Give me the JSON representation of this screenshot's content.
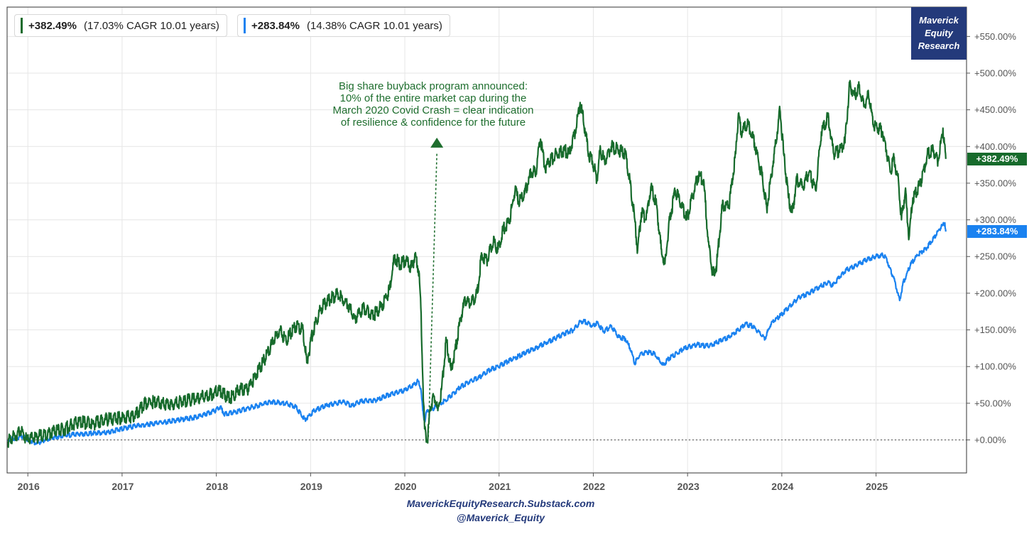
{
  "legend": [
    {
      "value": "+382.49%",
      "detail": "(17.03% CAGR 10.01 years)",
      "color": "#176b2c"
    },
    {
      "value": "+283.84%",
      "detail": "(14.38% CAGR 10.01 years)",
      "color": "#1a82f0"
    }
  ],
  "brand": {
    "line1": "Maverick",
    "line2": "Equity",
    "line3": "Research",
    "bg": "#243a7b"
  },
  "annotation": {
    "lines": [
      "Big share buyback program announced:",
      "10% of the entire market cap during the",
      "March 2020 Covid Crash = clear indication",
      "of resilience & confidence for the future"
    ],
    "color": "#1e6e2e",
    "arrow_x_year": 2020.35
  },
  "footer": {
    "site": "MaverickEquityResearch.Substack.com",
    "handle": "@Maverick_Equity"
  },
  "end_tags": {
    "green": "+382.49%",
    "blue": "+283.84%"
  },
  "chart_data": {
    "type": "line",
    "title": "",
    "xlabel": "",
    "ylabel": "",
    "xlim": [
      2015.79,
      2025.97
    ],
    "ylim": [
      -45,
      590
    ],
    "x_ticks": [
      "2016",
      "2017",
      "2018",
      "2019",
      "2020",
      "2021",
      "2022",
      "2023",
      "2024",
      "2025"
    ],
    "y_ticks": [
      {
        "value": 550,
        "label": "+550.00%"
      },
      {
        "value": 500,
        "label": "+500.00%"
      },
      {
        "value": 450,
        "label": "+450.00%"
      },
      {
        "value": 400,
        "label": "+400.00%"
      },
      {
        "value": 350,
        "label": "+350.00%"
      },
      {
        "value": 300,
        "label": "+300.00%"
      },
      {
        "value": 250,
        "label": "+250.00%"
      },
      {
        "value": 200,
        "label": "+200.00%"
      },
      {
        "value": 150,
        "label": "+150.00%"
      },
      {
        "value": 100,
        "label": "+100.00%"
      },
      {
        "value": 50,
        "label": "+50.00%"
      },
      {
        "value": 0,
        "label": "+0.00%"
      }
    ],
    "baseline": 0,
    "grid": true,
    "series": [
      {
        "name": "+382.49%",
        "color": "#176b2c",
        "points": [
          [
            2015.8,
            -2
          ],
          [
            2015.93,
            12
          ],
          [
            2016.0,
            0
          ],
          [
            2016.1,
            4
          ],
          [
            2016.25,
            10
          ],
          [
            2016.4,
            15
          ],
          [
            2016.55,
            25
          ],
          [
            2016.7,
            22
          ],
          [
            2016.85,
            28
          ],
          [
            2017.0,
            30
          ],
          [
            2017.15,
            33
          ],
          [
            2017.25,
            50
          ],
          [
            2017.35,
            52
          ],
          [
            2017.5,
            48
          ],
          [
            2017.65,
            52
          ],
          [
            2017.8,
            56
          ],
          [
            2017.95,
            62
          ],
          [
            2018.05,
            67
          ],
          [
            2018.15,
            56
          ],
          [
            2018.25,
            68
          ],
          [
            2018.35,
            70
          ],
          [
            2018.5,
            105
          ],
          [
            2018.6,
            130
          ],
          [
            2018.68,
            150
          ],
          [
            2018.75,
            135
          ],
          [
            2018.85,
            155
          ],
          [
            2018.93,
            150
          ],
          [
            2018.97,
            105
          ],
          [
            2019.03,
            145
          ],
          [
            2019.12,
            180
          ],
          [
            2019.2,
            190
          ],
          [
            2019.3,
            200
          ],
          [
            2019.4,
            185
          ],
          [
            2019.48,
            165
          ],
          [
            2019.58,
            180
          ],
          [
            2019.68,
            170
          ],
          [
            2019.78,
            185
          ],
          [
            2019.85,
            205
          ],
          [
            2019.9,
            250
          ],
          [
            2019.95,
            240
          ],
          [
            2020.02,
            245
          ],
          [
            2020.08,
            235
          ],
          [
            2020.12,
            250
          ],
          [
            2020.16,
            230
          ],
          [
            2020.18,
            180
          ],
          [
            2020.2,
            85
          ],
          [
            2020.22,
            15
          ],
          [
            2020.25,
            -2
          ],
          [
            2020.28,
            45
          ],
          [
            2020.32,
            60
          ],
          [
            2020.36,
            40
          ],
          [
            2020.4,
            70
          ],
          [
            2020.45,
            135
          ],
          [
            2020.5,
            95
          ],
          [
            2020.55,
            125
          ],
          [
            2020.6,
            165
          ],
          [
            2020.65,
            190
          ],
          [
            2020.7,
            185
          ],
          [
            2020.78,
            200
          ],
          [
            2020.82,
            250
          ],
          [
            2020.88,
            245
          ],
          [
            2020.95,
            270
          ],
          [
            2021.0,
            260
          ],
          [
            2021.05,
            285
          ],
          [
            2021.12,
            300
          ],
          [
            2021.18,
            340
          ],
          [
            2021.22,
            325
          ],
          [
            2021.28,
            335
          ],
          [
            2021.35,
            365
          ],
          [
            2021.4,
            365
          ],
          [
            2021.45,
            410
          ],
          [
            2021.5,
            370
          ],
          [
            2021.55,
            380
          ],
          [
            2021.62,
            390
          ],
          [
            2021.7,
            395
          ],
          [
            2021.75,
            390
          ],
          [
            2021.82,
            420
          ],
          [
            2021.87,
            460
          ],
          [
            2021.92,
            425
          ],
          [
            2021.96,
            390
          ],
          [
            2022.0,
            380
          ],
          [
            2022.05,
            355
          ],
          [
            2022.08,
            395
          ],
          [
            2022.13,
            380
          ],
          [
            2022.2,
            400
          ],
          [
            2022.28,
            395
          ],
          [
            2022.35,
            390
          ],
          [
            2022.4,
            350
          ],
          [
            2022.45,
            300
          ],
          [
            2022.48,
            258
          ],
          [
            2022.52,
            310
          ],
          [
            2022.57,
            300
          ],
          [
            2022.62,
            345
          ],
          [
            2022.68,
            320
          ],
          [
            2022.73,
            260
          ],
          [
            2022.77,
            240
          ],
          [
            2022.82,
            300
          ],
          [
            2022.88,
            340
          ],
          [
            2022.95,
            320
          ],
          [
            2023.0,
            300
          ],
          [
            2023.06,
            330
          ],
          [
            2023.12,
            360
          ],
          [
            2023.18,
            355
          ],
          [
            2023.23,
            270
          ],
          [
            2023.28,
            225
          ],
          [
            2023.32,
            240
          ],
          [
            2023.38,
            320
          ],
          [
            2023.45,
            320
          ],
          [
            2023.52,
            390
          ],
          [
            2023.55,
            445
          ],
          [
            2023.58,
            420
          ],
          [
            2023.65,
            430
          ],
          [
            2023.72,
            405
          ],
          [
            2023.8,
            360
          ],
          [
            2023.85,
            315
          ],
          [
            2023.92,
            380
          ],
          [
            2023.99,
            450
          ],
          [
            2024.03,
            390
          ],
          [
            2024.08,
            330
          ],
          [
            2024.12,
            310
          ],
          [
            2024.17,
            355
          ],
          [
            2024.23,
            345
          ],
          [
            2024.3,
            365
          ],
          [
            2024.37,
            340
          ],
          [
            2024.43,
            420
          ],
          [
            2024.5,
            440
          ],
          [
            2024.56,
            390
          ],
          [
            2024.62,
            395
          ],
          [
            2024.68,
            405
          ],
          [
            2024.73,
            485
          ],
          [
            2024.78,
            470
          ],
          [
            2024.83,
            480
          ],
          [
            2024.88,
            455
          ],
          [
            2024.93,
            470
          ],
          [
            2024.98,
            430
          ],
          [
            2025.04,
            425
          ],
          [
            2025.08,
            420
          ],
          [
            2025.12,
            395
          ],
          [
            2025.16,
            365
          ],
          [
            2025.2,
            385
          ],
          [
            2025.25,
            350
          ],
          [
            2025.28,
            300
          ],
          [
            2025.32,
            340
          ],
          [
            2025.36,
            275
          ],
          [
            2025.4,
            330
          ],
          [
            2025.48,
            350
          ],
          [
            2025.56,
            390
          ],
          [
            2025.62,
            395
          ],
          [
            2025.67,
            380
          ],
          [
            2025.72,
            425
          ],
          [
            2025.75,
            383
          ]
        ]
      },
      {
        "name": "+283.84%",
        "color": "#1a82f0",
        "points": [
          [
            2015.8,
            0
          ],
          [
            2015.95,
            5
          ],
          [
            2016.1,
            -5
          ],
          [
            2016.25,
            3
          ],
          [
            2016.4,
            6
          ],
          [
            2016.55,
            8
          ],
          [
            2016.7,
            9
          ],
          [
            2016.85,
            10
          ],
          [
            2017.0,
            15
          ],
          [
            2017.2,
            20
          ],
          [
            2017.4,
            23
          ],
          [
            2017.6,
            27
          ],
          [
            2017.8,
            31
          ],
          [
            2018.0,
            40
          ],
          [
            2018.05,
            45
          ],
          [
            2018.1,
            35
          ],
          [
            2018.2,
            38
          ],
          [
            2018.4,
            45
          ],
          [
            2018.6,
            52
          ],
          [
            2018.75,
            50
          ],
          [
            2018.85,
            45
          ],
          [
            2018.95,
            28
          ],
          [
            2019.05,
            40
          ],
          [
            2019.2,
            48
          ],
          [
            2019.35,
            52
          ],
          [
            2019.45,
            47
          ],
          [
            2019.55,
            53
          ],
          [
            2019.7,
            54
          ],
          [
            2019.85,
            62
          ],
          [
            2020.0,
            67
          ],
          [
            2020.1,
            75
          ],
          [
            2020.15,
            80
          ],
          [
            2020.18,
            70
          ],
          [
            2020.2,
            40
          ],
          [
            2020.22,
            25
          ],
          [
            2020.24,
            38
          ],
          [
            2020.3,
            42
          ],
          [
            2020.4,
            50
          ],
          [
            2020.5,
            60
          ],
          [
            2020.6,
            72
          ],
          [
            2020.7,
            80
          ],
          [
            2020.8,
            85
          ],
          [
            2020.9,
            95
          ],
          [
            2021.0,
            100
          ],
          [
            2021.1,
            107
          ],
          [
            2021.2,
            113
          ],
          [
            2021.3,
            120
          ],
          [
            2021.4,
            125
          ],
          [
            2021.5,
            132
          ],
          [
            2021.6,
            138
          ],
          [
            2021.7,
            145
          ],
          [
            2021.8,
            150
          ],
          [
            2021.88,
            162
          ],
          [
            2021.95,
            160
          ],
          [
            2022.0,
            155
          ],
          [
            2022.05,
            160
          ],
          [
            2022.12,
            148
          ],
          [
            2022.2,
            155
          ],
          [
            2022.28,
            140
          ],
          [
            2022.35,
            138
          ],
          [
            2022.4,
            125
          ],
          [
            2022.45,
            105
          ],
          [
            2022.5,
            115
          ],
          [
            2022.58,
            120
          ],
          [
            2022.65,
            118
          ],
          [
            2022.7,
            110
          ],
          [
            2022.75,
            102
          ],
          [
            2022.82,
            112
          ],
          [
            2022.9,
            118
          ],
          [
            2022.98,
            125
          ],
          [
            2023.05,
            128
          ],
          [
            2023.12,
            130
          ],
          [
            2023.2,
            128
          ],
          [
            2023.28,
            130
          ],
          [
            2023.35,
            135
          ],
          [
            2023.45,
            140
          ],
          [
            2023.55,
            150
          ],
          [
            2023.62,
            158
          ],
          [
            2023.7,
            155
          ],
          [
            2023.78,
            145
          ],
          [
            2023.83,
            138
          ],
          [
            2023.9,
            160
          ],
          [
            2024.0,
            170
          ],
          [
            2024.1,
            183
          ],
          [
            2024.2,
            195
          ],
          [
            2024.3,
            200
          ],
          [
            2024.4,
            208
          ],
          [
            2024.5,
            215
          ],
          [
            2024.55,
            210
          ],
          [
            2024.62,
            222
          ],
          [
            2024.7,
            232
          ],
          [
            2024.8,
            238
          ],
          [
            2024.9,
            245
          ],
          [
            2025.0,
            250
          ],
          [
            2025.08,
            252
          ],
          [
            2025.12,
            248
          ],
          [
            2025.15,
            235
          ],
          [
            2025.2,
            220
          ],
          [
            2025.24,
            200
          ],
          [
            2025.26,
            190
          ],
          [
            2025.3,
            215
          ],
          [
            2025.38,
            240
          ],
          [
            2025.45,
            252
          ],
          [
            2025.55,
            262
          ],
          [
            2025.62,
            275
          ],
          [
            2025.7,
            290
          ],
          [
            2025.74,
            296
          ],
          [
            2025.75,
            284
          ]
        ]
      }
    ]
  }
}
